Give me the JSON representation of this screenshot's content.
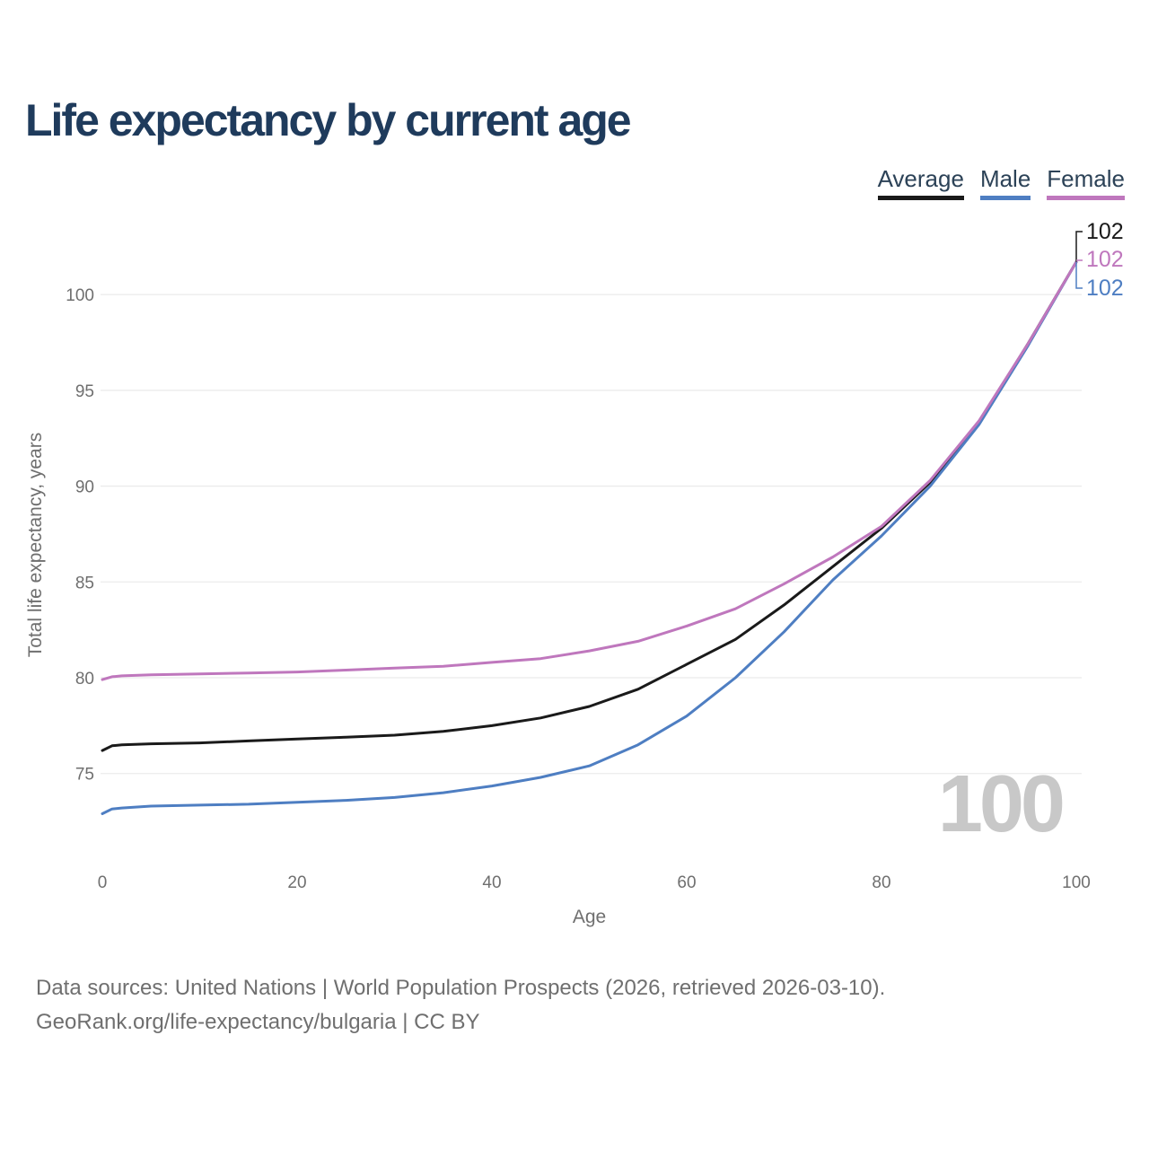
{
  "page": {
    "title": "Life expectancy by current age",
    "footer": {
      "line1": "Data sources: United Nations | World Population Prospects (2026, retrieved 2026-03-10).",
      "line2": "GeoRank.org/life-expectancy/bulgaria | CC BY"
    }
  },
  "colors": {
    "title_text": "#1f3b5c",
    "legend_text": "#2c4257",
    "axis_text": "#6f6f6f",
    "gridline": "#ebebeb",
    "watermark": "#c8c8c8"
  },
  "chart_data": {
    "type": "line",
    "title": "Life expectancy by current age",
    "xlabel": "Age",
    "ylabel": "Total life expectancy, years",
    "xlim": [
      0,
      100
    ],
    "ylim": [
      72,
      103
    ],
    "x_ticks": [
      0,
      20,
      40,
      60,
      80,
      100
    ],
    "y_ticks": [
      75,
      80,
      85,
      90,
      95,
      100
    ],
    "grid": "horizontal",
    "legend_position": "top-right",
    "watermark": "100",
    "x": [
      0,
      1,
      2,
      5,
      10,
      15,
      20,
      25,
      30,
      35,
      40,
      45,
      50,
      55,
      60,
      65,
      70,
      75,
      80,
      85,
      90,
      95,
      100
    ],
    "series": [
      {
        "name": "Average",
        "color": "#1a1a1a",
        "end_label": "102",
        "values": [
          76.2,
          76.45,
          76.5,
          76.55,
          76.6,
          76.7,
          76.8,
          76.9,
          77.0,
          77.2,
          77.5,
          77.9,
          78.5,
          79.4,
          80.7,
          82.0,
          83.8,
          85.8,
          87.8,
          90.2,
          93.3,
          97.4,
          101.7
        ]
      },
      {
        "name": "Male",
        "color": "#4e7ec2",
        "end_label": "102",
        "values": [
          72.9,
          73.15,
          73.2,
          73.3,
          73.35,
          73.4,
          73.5,
          73.6,
          73.75,
          74.0,
          74.35,
          74.8,
          75.4,
          76.5,
          78.0,
          80.0,
          82.4,
          85.1,
          87.4,
          90.0,
          93.2,
          97.3,
          101.7
        ]
      },
      {
        "name": "Female",
        "color": "#bf77bd",
        "end_label": "102",
        "values": [
          79.9,
          80.05,
          80.1,
          80.15,
          80.2,
          80.25,
          80.3,
          80.4,
          80.5,
          80.6,
          80.8,
          81.0,
          81.4,
          81.9,
          82.7,
          83.6,
          84.9,
          86.3,
          87.9,
          90.3,
          93.4,
          97.4,
          101.7
        ]
      }
    ]
  }
}
